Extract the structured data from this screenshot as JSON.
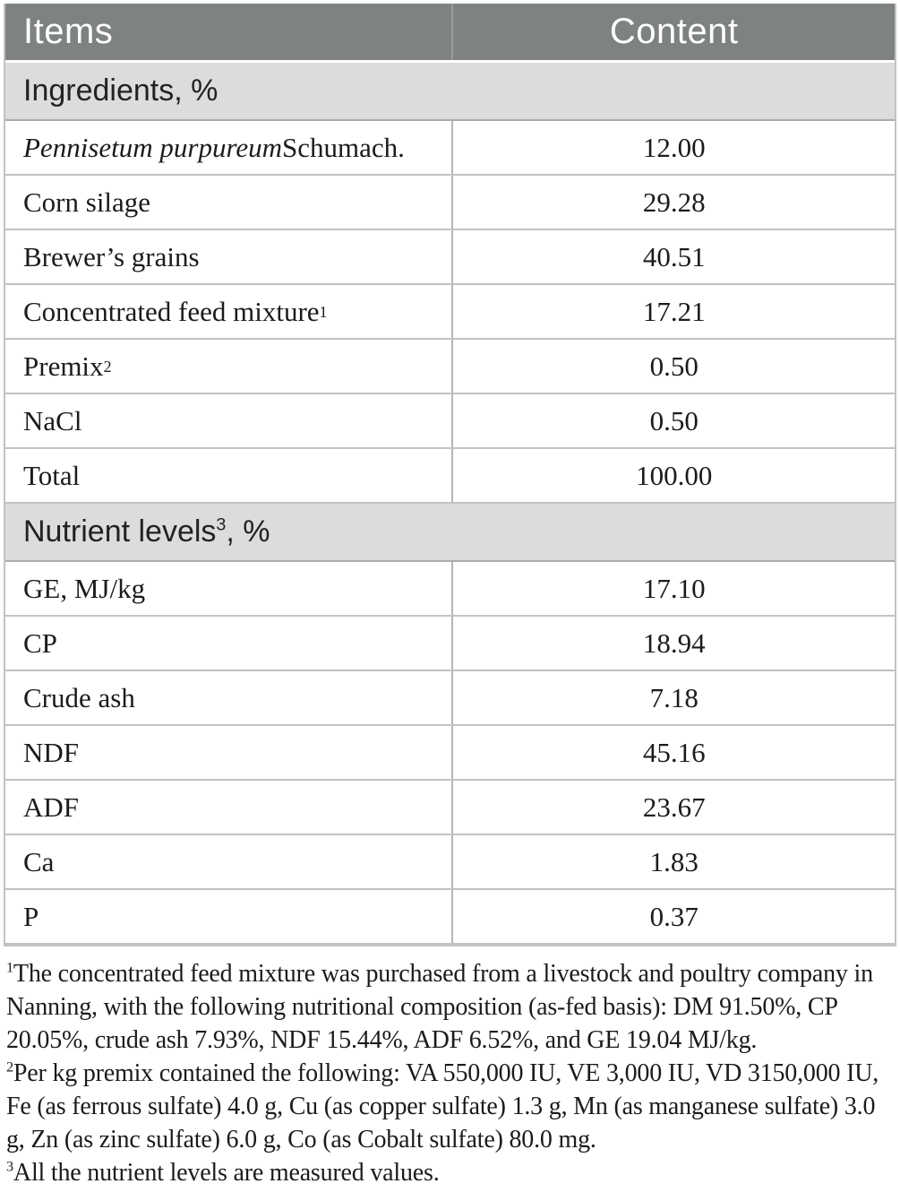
{
  "colors": {
    "header_bg": "#7f8282",
    "header_text": "#ffffff",
    "band_bg": "#dcdcdc",
    "band_border": "#ababab",
    "grid_line": "#c2c2c2",
    "divider_line": "#b5b5b5",
    "text_color": "#1b1b1b"
  },
  "table": {
    "columns": {
      "items": "Items",
      "content": "Content"
    },
    "sections": [
      {
        "title": "Ingredients",
        "sup": "",
        "suffix": ", %",
        "rows": [
          {
            "label_italic": "Pennisetum purpureum",
            "label": " Schumach.",
            "value": "12.00"
          },
          {
            "label": "Corn silage",
            "value": "29.28"
          },
          {
            "label": "Brewer’s grains",
            "value": "40.51"
          },
          {
            "label": "Concentrated feed mixture",
            "sup": "1",
            "value": "17.21"
          },
          {
            "label": "Premix",
            "sup": "2",
            "value": "0.50"
          },
          {
            "label": "NaCl",
            "value": "0.50"
          },
          {
            "label": "Total",
            "value": "100.00"
          }
        ]
      },
      {
        "title": "Nutrient levels",
        "sup": "3",
        "suffix": ", %",
        "rows": [
          {
            "label": "GE, MJ/kg",
            "value": "17.10"
          },
          {
            "label": "CP",
            "value": "18.94"
          },
          {
            "label": "Crude ash",
            "value": "7.18"
          },
          {
            "label": "NDF",
            "value": "45.16"
          },
          {
            "label": "ADF",
            "value": "23.67"
          },
          {
            "label": "Ca",
            "value": "1.83"
          },
          {
            "label": "P",
            "value": "0.37"
          }
        ]
      }
    ]
  },
  "footnotes": [
    {
      "sup": "1",
      "text": "The concentrated feed mixture was purchased from a livestock and poultry company in Nanning, with the following nutritional composition (as-fed basis): DM 91.50%, CP 20.05%, crude ash 7.93%, NDF 15.44%, ADF 6.52%, and GE 19.04 MJ/kg."
    },
    {
      "sup": "2",
      "text": "Per kg premix contained the following: VA 550,000 IU, VE 3,000 IU, VD 3150,000 IU, Fe (as ferrous sulfate) 4.0 g, Cu (as copper sulfate) 1.3 g, Mn (as manganese sulfate) 3.0 g, Zn (as zinc sulfate) 6.0 g, Co (as Cobalt sulfate) 80.0 mg."
    },
    {
      "sup": "3",
      "text": "All the nutrient levels are measured values."
    }
  ]
}
